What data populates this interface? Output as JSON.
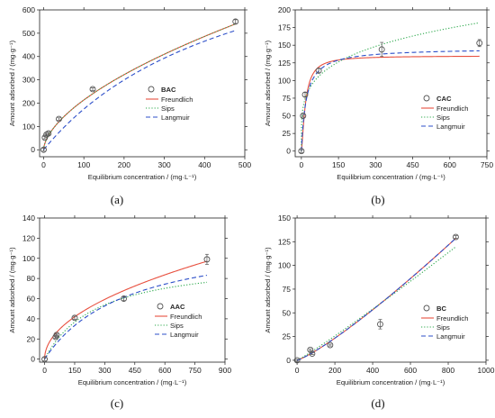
{
  "colors": {
    "freundlich": "#e8503f",
    "sips": "#2aa84a",
    "langmuir": "#2d4fc9",
    "marker": "#555555"
  },
  "chart_data": [
    {
      "panel": "(a)",
      "type": "scatter",
      "legend_title": "BAC",
      "legend_position": "center-right",
      "xlabel": "Equilibrium concentration / (mg·L⁻¹)",
      "ylabel": "Amount adsorbed / (mg·g⁻¹)",
      "xlim": [
        -10,
        500
      ],
      "ylim": [
        -30,
        600
      ],
      "xticks": [
        0,
        100,
        200,
        300,
        400,
        500
      ],
      "yticks": [
        0,
        100,
        200,
        300,
        400,
        500,
        600
      ],
      "points": [
        [
          0,
          0
        ],
        [
          3,
          52
        ],
        [
          7,
          65
        ],
        [
          12,
          70
        ],
        [
          38,
          132
        ],
        [
          122,
          260
        ],
        [
          477,
          550
        ]
      ],
      "error_bars": [
        [
          0,
          6
        ],
        [
          3,
          5
        ],
        [
          7,
          5
        ],
        [
          12,
          5
        ],
        [
          38,
          5
        ],
        [
          122,
          6
        ],
        [
          477,
          8
        ]
      ],
      "series": [
        {
          "name": "Freundlich",
          "model": "power",
          "k": 13.86,
          "n": 0.5938,
          "style": "solid"
        },
        {
          "name": "Sips",
          "model": "power",
          "k": 13.86,
          "n": 0.5938,
          "style": "dotted"
        },
        {
          "name": "Langmuir",
          "model": "langmuir",
          "qm": 1048,
          "kl": 0.002,
          "style": "dashed"
        }
      ]
    },
    {
      "panel": "(b)",
      "type": "scatter",
      "legend_title": "CAC",
      "legend_position": "lower-right",
      "xlabel": "Equilibrium concentration / (mg·L⁻¹)",
      "ylabel": "Amount adsorbed / (mg·g⁻¹)",
      "xlim": [
        -25,
        750
      ],
      "ylim": [
        -8,
        200
      ],
      "xticks": [
        0,
        150,
        300,
        450,
        600,
        750
      ],
      "yticks": [
        0,
        25,
        50,
        75,
        100,
        125,
        150,
        175,
        200
      ],
      "points": [
        [
          0,
          0
        ],
        [
          7,
          50
        ],
        [
          15,
          80
        ],
        [
          70,
          114
        ],
        [
          325,
          144
        ],
        [
          720,
          153
        ]
      ],
      "error_bars": [
        [
          0,
          2
        ],
        [
          7,
          2
        ],
        [
          15,
          3
        ],
        [
          70,
          3
        ],
        [
          325,
          10
        ],
        [
          720,
          5
        ]
      ],
      "series": [
        {
          "name": "Freundlich",
          "model": "sips",
          "qm": 135,
          "ks": 0.06,
          "n": 1.4,
          "style": "solid"
        },
        {
          "name": "Sips",
          "model": "power",
          "k": 39.5,
          "n": 0.232,
          "style": "dotted"
        },
        {
          "name": "Langmuir",
          "model": "langmuir",
          "qm": 146,
          "kl": 0.05,
          "style": "dashed"
        }
      ]
    },
    {
      "panel": "(c)",
      "type": "scatter",
      "legend_title": "AAC",
      "legend_position": "lower-right",
      "xlabel": "Equilibrium concentration / (mg·L⁻¹)",
      "ylabel": "Amount adsorbed / (mg·g⁻¹)",
      "xlim": [
        -25,
        900
      ],
      "ylim": [
        -3,
        140
      ],
      "xticks": [
        0,
        150,
        300,
        450,
        600,
        750,
        900
      ],
      "yticks": [
        0,
        20,
        40,
        60,
        80,
        100,
        120,
        140
      ],
      "points": [
        [
          0,
          0
        ],
        [
          55,
          22
        ],
        [
          60,
          24
        ],
        [
          150,
          41
        ],
        [
          395,
          60
        ],
        [
          810,
          99
        ]
      ],
      "error_bars": [
        [
          0,
          1.5
        ],
        [
          55,
          1.5
        ],
        [
          60,
          1.5
        ],
        [
          150,
          1.5
        ],
        [
          395,
          2
        ],
        [
          810,
          5
        ]
      ],
      "series": [
        {
          "name": "Freundlich",
          "model": "power",
          "k": 3.48,
          "n": 0.497,
          "style": "solid"
        },
        {
          "name": "Sips",
          "model": "langmuir",
          "qm": 101,
          "kl": 0.0038,
          "style": "dotted"
        },
        {
          "name": "Langmuir",
          "model": "langmuir",
          "qm": 126,
          "kl": 0.0024,
          "style": "dashed"
        }
      ]
    },
    {
      "panel": "(d)",
      "type": "scatter",
      "legend_title": "BC",
      "legend_position": "lower-right",
      "xlabel": "Equilibrium concentration / (mg·L⁻¹)",
      "ylabel": "Amount adsorbed / (mg·g⁻¹)",
      "xlim": [
        -10,
        1000
      ],
      "ylim": [
        -2,
        150
      ],
      "xticks": [
        0,
        200,
        400,
        600,
        800,
        1000
      ],
      "yticks": [
        0,
        25,
        50,
        75,
        100,
        125,
        150
      ],
      "points": [
        [
          0,
          0
        ],
        [
          70,
          11
        ],
        [
          80,
          7
        ],
        [
          175,
          16
        ],
        [
          440,
          38
        ],
        [
          840,
          130
        ]
      ],
      "error_bars": [
        [
          0,
          1
        ],
        [
          70,
          1
        ],
        [
          80,
          1
        ],
        [
          175,
          1
        ],
        [
          440,
          5
        ],
        [
          840,
          1.5
        ]
      ],
      "series": [
        {
          "name": "Freundlich",
          "model": "power",
          "k": 0.0426,
          "n": 1.19,
          "style": "solid"
        },
        {
          "name": "Sips",
          "model": "power",
          "k": 0.0862,
          "n": 1.0745,
          "style": "dotted"
        },
        {
          "name": "Langmuir",
          "model": "power",
          "k": 0.0426,
          "n": 1.19,
          "style": "dashed"
        }
      ]
    }
  ]
}
